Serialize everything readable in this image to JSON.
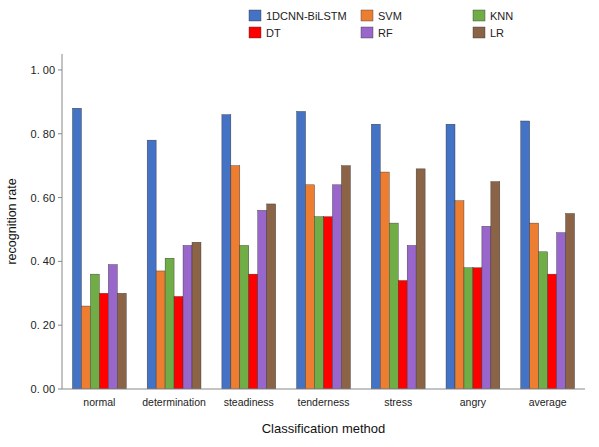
{
  "chart_data": {
    "type": "bar",
    "categories": [
      "normal",
      "determination",
      "steadiness",
      "tenderness",
      "stress",
      "angry",
      "average"
    ],
    "series": [
      {
        "name": "1DCNN-BiLSTM",
        "color": "#4472C4",
        "values": [
          0.88,
          0.78,
          0.86,
          0.87,
          0.83,
          0.83,
          0.84
        ]
      },
      {
        "name": "SVM",
        "color": "#ED7D31",
        "values": [
          0.26,
          0.37,
          0.7,
          0.64,
          0.68,
          0.59,
          0.52
        ]
      },
      {
        "name": "KNN",
        "color": "#70AD47",
        "values": [
          0.36,
          0.41,
          0.45,
          0.54,
          0.52,
          0.38,
          0.43
        ]
      },
      {
        "name": "DT",
        "color": "#FF0000",
        "values": [
          0.3,
          0.29,
          0.36,
          0.54,
          0.34,
          0.38,
          0.36
        ]
      },
      {
        "name": "RF",
        "color": "#9966CC",
        "values": [
          0.39,
          0.45,
          0.56,
          0.64,
          0.45,
          0.51,
          0.49
        ]
      },
      {
        "name": "LR",
        "color": "#8B6347",
        "values": [
          0.3,
          0.46,
          0.58,
          0.7,
          0.69,
          0.65,
          0.55
        ]
      }
    ],
    "xlabel": "Classification method",
    "ylabel": "recognition rate",
    "ylim": [
      0.0,
      1.05
    ],
    "yticks": [
      {
        "value": 0.0,
        "label": "0. 00"
      },
      {
        "value": 0.2,
        "label": "0. 20"
      },
      {
        "value": 0.4,
        "label": "0. 40"
      },
      {
        "value": 0.6,
        "label": "0. 60"
      },
      {
        "value": 0.8,
        "label": "0. 80"
      },
      {
        "value": 1.0,
        "label": "1. 00"
      }
    ],
    "legend": "upper right",
    "grid": false
  }
}
